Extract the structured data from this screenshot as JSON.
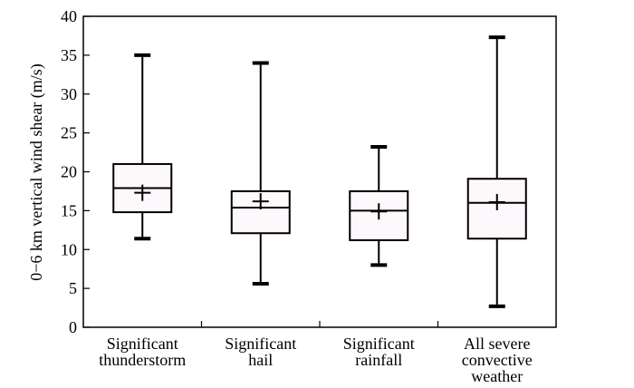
{
  "chart_data": {
    "type": "box",
    "title": "",
    "xlabel": "",
    "ylabel": "0−6 km vertical wind shear (m/s)",
    "ylim": [
      0,
      40
    ],
    "yticks": [
      0,
      5,
      10,
      15,
      20,
      25,
      30,
      35,
      40
    ],
    "grid": false,
    "categories": [
      [
        "Significant",
        "thunderstorm"
      ],
      [
        "Significant",
        "hail"
      ],
      [
        "Significant",
        "rainfall"
      ],
      [
        "All severe",
        "convective",
        "weather"
      ]
    ],
    "boxes": [
      {
        "min": 11.4,
        "q1": 14.8,
        "median": 17.9,
        "q3": 21.0,
        "max": 35.0,
        "mean": 17.3
      },
      {
        "min": 5.6,
        "q1": 12.1,
        "median": 15.4,
        "q3": 17.5,
        "max": 34.0,
        "mean": 16.2
      },
      {
        "min": 8.0,
        "q1": 11.2,
        "median": 15.0,
        "q3": 17.5,
        "max": 23.2,
        "mean": 14.9
      },
      {
        "min": 2.7,
        "q1": 11.4,
        "median": 16.0,
        "q3": 19.1,
        "max": 37.3,
        "mean": 16.1
      }
    ]
  }
}
